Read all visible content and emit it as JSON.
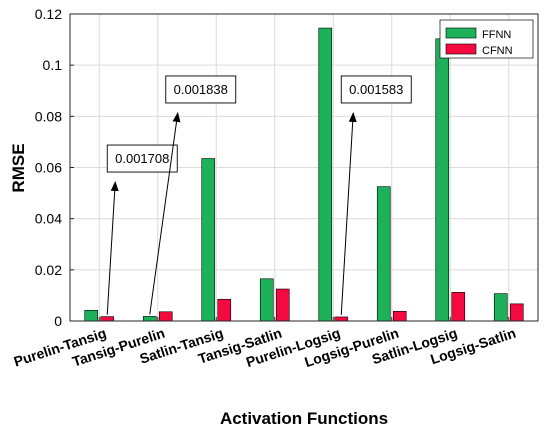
{
  "chart_data": {
    "type": "bar",
    "categories": [
      "Purelin-Tansig",
      "Tansig-Purelin",
      "Satlin-Tansig",
      "Tansig-Satlin",
      "Purelin-Logsig",
      "Logsig-Purelin",
      "Satlin-Logsig",
      "Logsig-Satlin"
    ],
    "series": [
      {
        "name": "FFNN",
        "color": "#1db25a",
        "values": [
          0.0042,
          0.0018,
          0.0635,
          0.0165,
          0.1145,
          0.0525,
          0.1103,
          0.0107
        ]
      },
      {
        "name": "CFNN",
        "color": "#f50a3f",
        "values": [
          0.001708,
          0.0036,
          0.0085,
          0.0125,
          0.001583,
          0.0038,
          0.0112,
          0.0067
        ]
      }
    ],
    "xlabel": "Activation Functions",
    "ylabel": "RMSE",
    "ylim": [
      0,
      0.12
    ],
    "yticks": [
      0,
      0.02,
      0.04,
      0.06,
      0.08,
      0.1,
      0.12
    ],
    "ytick_labels": [
      "0",
      "0.02",
      "0.04",
      "0.06",
      "0.08",
      "0.1",
      "0.12"
    ],
    "grid": true,
    "legend_position": "top-right",
    "annotations": [
      {
        "text": "0.001708",
        "category": "Purelin-Tansig",
        "series": "CFNN",
        "label_y": 0.0635
      },
      {
        "text": "0.001838",
        "category": "Tansig-Purelin",
        "series": "FFNN",
        "label_y": 0.0905
      },
      {
        "text": "0.001583",
        "category": "Purelin-Logsig",
        "series": "CFNN",
        "label_y": 0.0905
      }
    ]
  }
}
